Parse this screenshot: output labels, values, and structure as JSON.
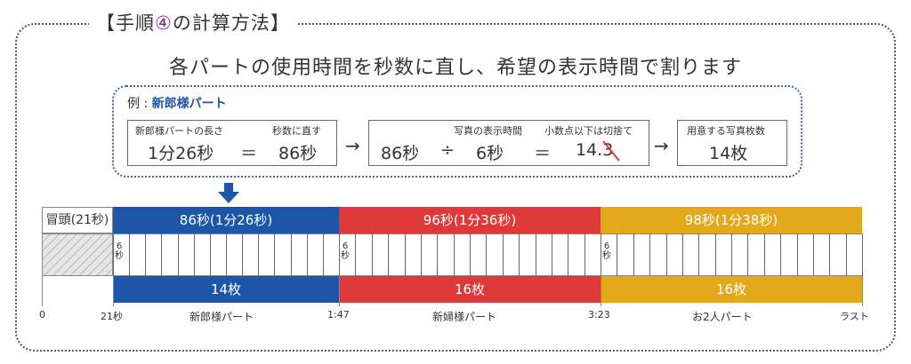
{
  "heading": {
    "prefix": "【手順",
    "step_symbol": "④",
    "suffix": "の計算方法】"
  },
  "subtitle": "各パートの使用時間を秒数に直し、希望の表示時間で割ります",
  "example": {
    "label_prefix": "例 : ",
    "label_name": "新郎様パート",
    "box1": {
      "caption_left": "新郎様パートの長さ",
      "caption_right": "秒数に直す",
      "value_left": "1分26秒",
      "equals": "＝",
      "value_right": "86秒"
    },
    "arrow1": "→",
    "box2": {
      "caption_mid": "写真の表示時間",
      "caption_right": "小数点以下は切捨て",
      "value1": "86秒",
      "divide": "÷",
      "value2": "6秒",
      "equals": "＝",
      "result_int": "14.",
      "result_dec": "3"
    },
    "arrow2": "→",
    "box3": {
      "caption": "用意する写真枚数",
      "value": "14枚"
    }
  },
  "timeline": {
    "intro_label": "冒頭(21秒)",
    "segments": [
      {
        "name": "新郎様パート",
        "duration": "86秒(1分26秒)",
        "count": "14枚",
        "photos": 14,
        "color": "#1d55a8"
      },
      {
        "name": "新婦様パート",
        "duration": "96秒(1分36秒)",
        "count": "16枚",
        "photos": 16,
        "color": "#e0393a"
      },
      {
        "name": "お2人パート",
        "duration": "98秒(1分38秒)",
        "count": "16枚",
        "photos": 16,
        "color": "#e4a91b"
      }
    ],
    "cell_label_top": "6",
    "cell_label_bottom": "秒",
    "ticks": [
      "0",
      "21秒",
      "1:47",
      "3:23",
      "ラスト"
    ]
  }
}
